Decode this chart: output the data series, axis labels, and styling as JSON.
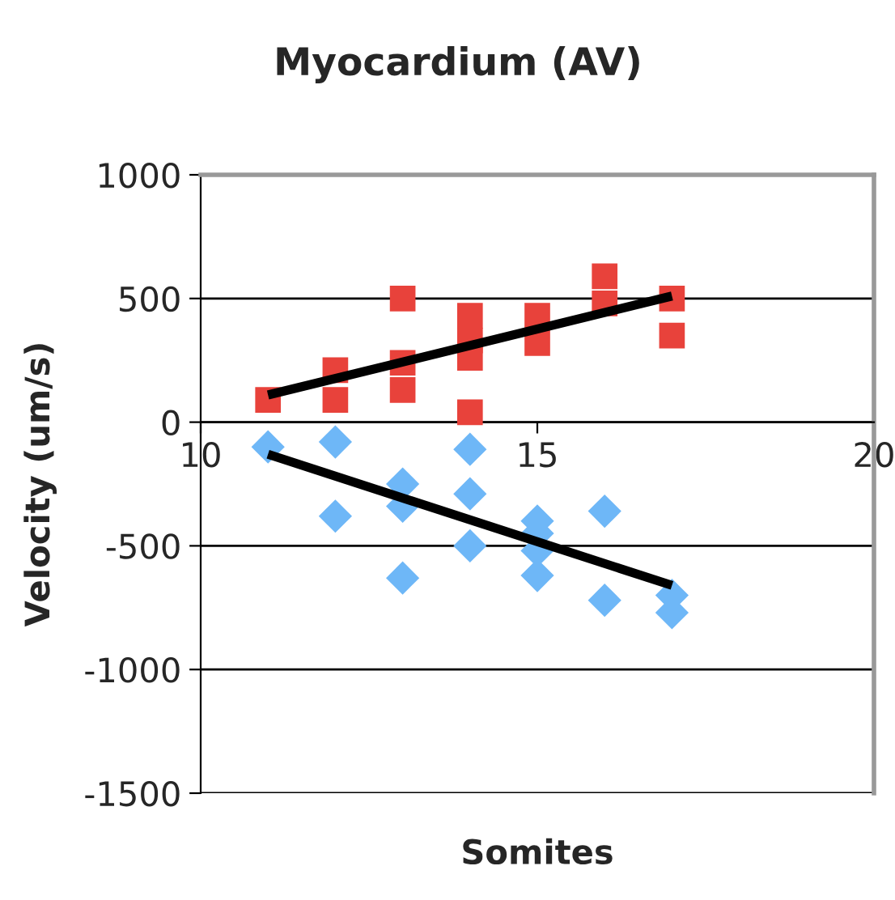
{
  "chart_data": {
    "type": "scatter",
    "title": "Myocardium (AV)",
    "xlabel": "Somites",
    "ylabel": "Velocity (um/s)",
    "xlim": [
      10,
      20
    ],
    "xticks": [
      10,
      15,
      20
    ],
    "ylim": [
      -1500,
      1000
    ],
    "yticks": [
      -1500,
      -1000,
      -500,
      0,
      500,
      1000
    ],
    "grid": "y",
    "legend": false,
    "series": [
      {
        "marker": "square",
        "color": "#e8423b",
        "x": [
          11,
          12,
          12,
          13,
          13,
          13,
          14,
          14,
          14,
          14,
          15,
          15,
          16,
          16,
          17,
          17
        ],
        "values": [
          90,
          210,
          90,
          500,
          240,
          130,
          430,
          330,
          260,
          40,
          430,
          320,
          590,
          480,
          500,
          350
        ]
      },
      {
        "marker": "diamond",
        "color": "#6eb7f7",
        "x": [
          11,
          12,
          12,
          13,
          13,
          13,
          14,
          14,
          14,
          15,
          15,
          15,
          15,
          16,
          16,
          17,
          17
        ],
        "values": [
          -100,
          -80,
          -380,
          -250,
          -340,
          -630,
          -110,
          -290,
          -500,
          -400,
          -450,
          -520,
          -620,
          -360,
          -720,
          -700,
          -770
        ]
      },
      {
        "type": "line",
        "marker": "none",
        "color": "#000000",
        "x": [
          11,
          17
        ],
        "values": [
          110,
          510
        ]
      },
      {
        "type": "line",
        "marker": "none",
        "color": "#000000",
        "x": [
          11,
          17
        ],
        "values": [
          -130,
          -660
        ]
      }
    ]
  }
}
